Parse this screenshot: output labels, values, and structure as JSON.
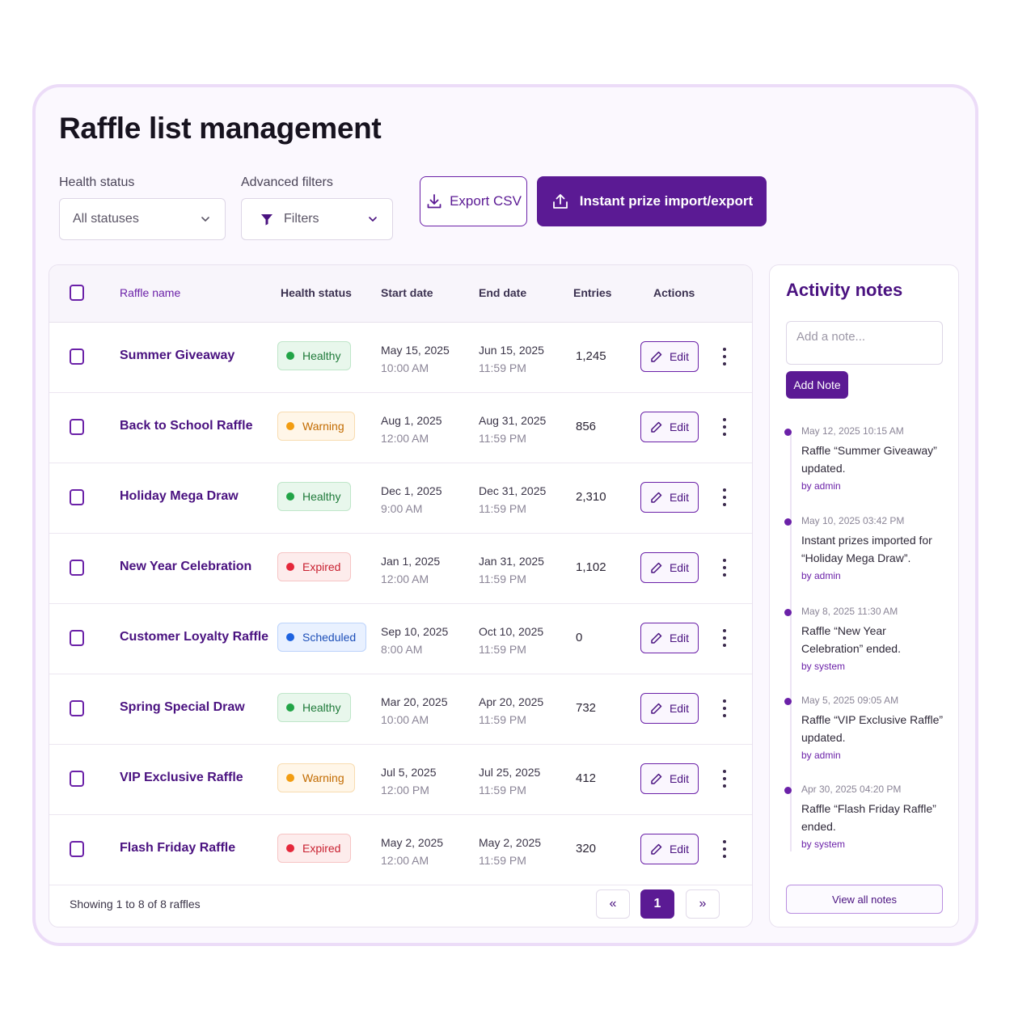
{
  "page": {
    "title": "Raffle list management"
  },
  "filters": {
    "health_label": "Health status",
    "health_value": "All statuses",
    "advanced_label": "Advanced filters",
    "advanced_value": "Filters"
  },
  "toolbar": {
    "export_label": "Export CSV",
    "import_label": "Instant prize import/export"
  },
  "table": {
    "columns": {
      "name": "Raffle name",
      "health": "Health status",
      "start": "Start date",
      "end": "End date",
      "entries": "Entries",
      "actions": "Actions"
    },
    "rows": [
      {
        "name": "Summer Giveaway",
        "status": "Healthy",
        "start_date": "May 15, 2025",
        "start_time": "10:00 AM",
        "end_date": "Jun 15, 2025",
        "end_time": "11:59 PM",
        "entries": "1,245",
        "edit": "Edit"
      },
      {
        "name": "Back to School Raffle",
        "status": "Warning",
        "start_date": "Aug 1, 2025",
        "start_time": "12:00 AM",
        "end_date": "Aug 31, 2025",
        "end_time": "11:59 PM",
        "entries": "856",
        "edit": "Edit"
      },
      {
        "name": "Holiday Mega Draw",
        "status": "Healthy",
        "start_date": "Dec 1, 2025",
        "start_time": "9:00 AM",
        "end_date": "Dec 31, 2025",
        "end_time": "11:59 PM",
        "entries": "2,310",
        "edit": "Edit"
      },
      {
        "name": "New Year Celebration",
        "status": "Expired",
        "start_date": "Jan 1, 2025",
        "start_time": "12:00 AM",
        "end_date": "Jan 31, 2025",
        "end_time": "11:59 PM",
        "entries": "1,102",
        "edit": "Edit"
      },
      {
        "name": "Customer Loyalty Raffle",
        "status": "Scheduled",
        "start_date": "Sep 10, 2025",
        "start_time": "8:00 AM",
        "end_date": "Oct 10, 2025",
        "end_time": "11:59 PM",
        "entries": "0",
        "edit": "Edit"
      },
      {
        "name": "Spring Special Draw",
        "status": "Healthy",
        "start_date": "Mar 20, 2025",
        "start_time": "10:00 AM",
        "end_date": "Apr 20, 2025",
        "end_time": "11:59 PM",
        "entries": "732",
        "edit": "Edit"
      },
      {
        "name": "VIP Exclusive Raffle",
        "status": "Warning",
        "start_date": "Jul 5, 2025",
        "start_time": "12:00 PM",
        "end_date": "Jul 25, 2025",
        "end_time": "11:59 PM",
        "entries": "412",
        "edit": "Edit"
      },
      {
        "name": "Flash Friday Raffle",
        "status": "Expired",
        "start_date": "May 2, 2025",
        "start_time": "12:00 AM",
        "end_date": "May 2, 2025",
        "end_time": "11:59 PM",
        "entries": "320",
        "edit": "Edit"
      }
    ],
    "footer": "Showing 1 to 8 of 8 raffles",
    "pagination": {
      "prev": "«",
      "current": "1",
      "next": "»"
    }
  },
  "status_colors": {
    "Healthy": {
      "bg": "#e8f7ec",
      "border": "#bfe6c9",
      "dot": "#22a447",
      "text": "#1f7a3a"
    },
    "Warning": {
      "bg": "#fff6e8",
      "border": "#f8dcb0",
      "dot": "#f29d12",
      "text": "#c26b00"
    },
    "Expired": {
      "bg": "#fdecec",
      "border": "#f6c4c4",
      "dot": "#e5283b",
      "text": "#c81f2f"
    },
    "Scheduled": {
      "bg": "#e9f1ff",
      "border": "#bcd3fb",
      "dot": "#1d63e0",
      "text": "#1d4fb8"
    }
  },
  "accent_color": "#5b1a94",
  "notes": {
    "title": "Activity notes",
    "input_placeholder": "Add a note...",
    "add_label": "Add Note",
    "items": [
      {
        "timestamp": "May 12, 2025 10:15 AM",
        "message": "Raffle “Summer Giveaway” updated.",
        "by": "by admin"
      },
      {
        "timestamp": "May 10, 2025 03:42 PM",
        "message": "Instant prizes imported for “Holiday Mega Draw”.",
        "by": "by admin"
      },
      {
        "timestamp": "May 8, 2025 11:30 AM",
        "message": "Raffle “New Year Celebration” ended.",
        "by": "by system"
      },
      {
        "timestamp": "May 5, 2025 09:05 AM",
        "message": "Raffle “VIP Exclusive Raffle” updated.",
        "by": "by admin"
      },
      {
        "timestamp": "Apr 30, 2025 04:20 PM",
        "message": "Raffle “Flash Friday Raffle” ended.",
        "by": "by system"
      }
    ],
    "view_all": "View all notes"
  }
}
